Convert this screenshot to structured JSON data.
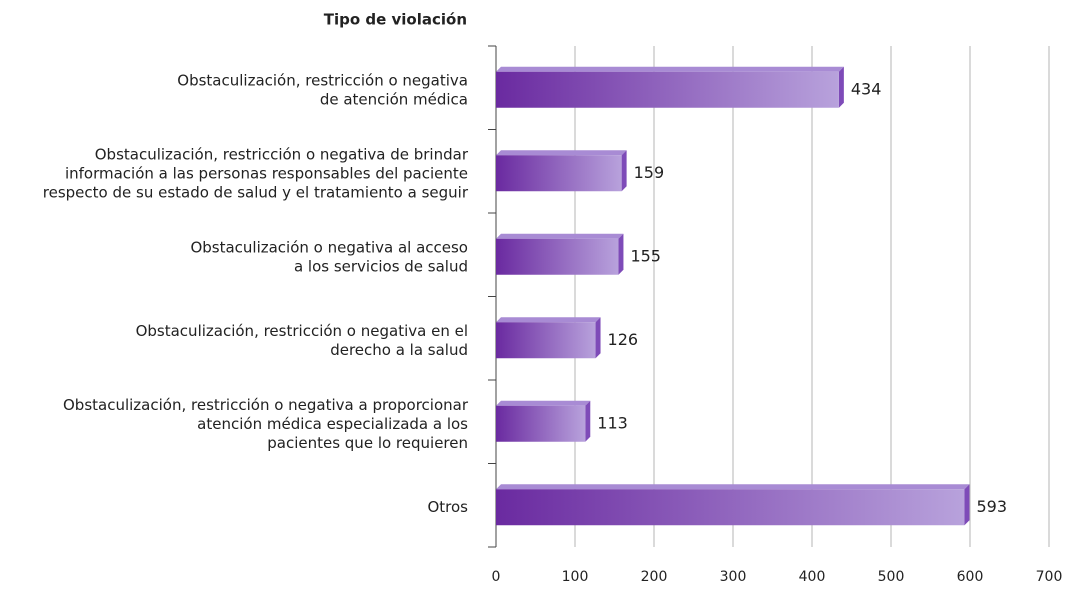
{
  "chart_data": {
    "type": "barh",
    "title": "Tipo de violación",
    "categories": [
      "Obstaculización, restricción o negativa\nde atención médica",
      "Obstaculización, restricción o negativa de brindar\ninformación a las personas responsables del paciente\nrespecto de su estado de salud y el tratamiento a seguir",
      "Obstaculización o negativa al acceso\na los servicios de salud",
      "Obstaculización, restricción o negativa en el\nderecho a la salud",
      "Obstaculización, restricción o negativa a proporcionar\natención médica especializada a los\npacientes que lo requieren",
      "Otros"
    ],
    "values": [
      434,
      159,
      155,
      126,
      113,
      593
    ],
    "color": "#6a2aa0",
    "xlim": [
      0,
      700
    ],
    "xticks": [
      0,
      100,
      200,
      300,
      400,
      500,
      600,
      700
    ],
    "grid": true
  }
}
